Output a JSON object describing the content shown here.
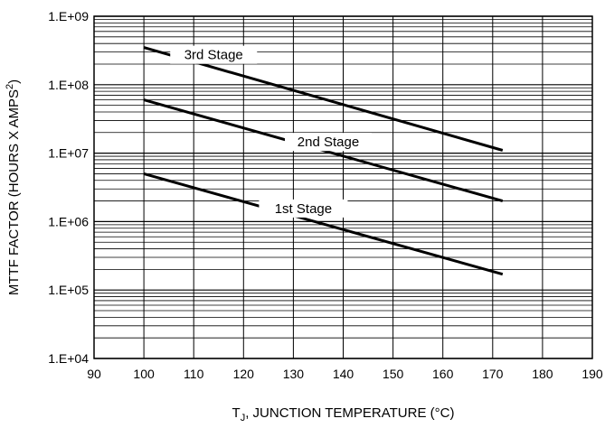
{
  "chart_data": {
    "type": "line",
    "title": "",
    "xlabel_main": "T",
    "xlabel_sub": "J",
    "xlabel_rest": ", JUNCTION TEMPERATURE (°C)",
    "ylabel_main": "MTTF FACTOR (HOURS X AMPS",
    "ylabel_sup": "2",
    "ylabel_end": ")",
    "x_scale": "linear",
    "y_scale": "log",
    "xlim": [
      90,
      190
    ],
    "ylim": [
      10000,
      1000000000
    ],
    "x_ticks": [
      90,
      100,
      110,
      120,
      130,
      140,
      150,
      160,
      170,
      180,
      190
    ],
    "x_tick_labels": [
      "90",
      "100",
      "110",
      "120",
      "130",
      "140",
      "150",
      "160",
      "170",
      "180",
      "190"
    ],
    "y_ticks": [
      10000,
      100000,
      1000000,
      10000000,
      100000000,
      1000000000
    ],
    "y_tick_labels": [
      "1.E+04",
      "1.E+05",
      "1.E+06",
      "1.E+07",
      "1.E+08",
      "1.E+09"
    ],
    "grid": true,
    "series": [
      {
        "name": "1st Stage",
        "x": [
          100,
          172
        ],
        "y": [
          5000000,
          170000
        ]
      },
      {
        "name": "2nd Stage",
        "x": [
          100,
          172
        ],
        "y": [
          60000000,
          2000000
        ]
      },
      {
        "name": "3rd Stage",
        "x": [
          100,
          172
        ],
        "y": [
          350000000,
          11000000
        ]
      }
    ]
  }
}
